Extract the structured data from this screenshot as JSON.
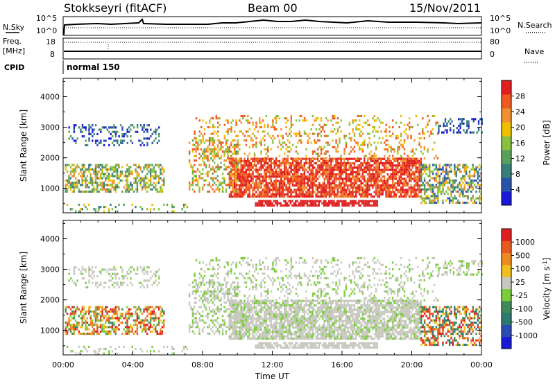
{
  "header": {
    "station": "Stokkseyri (fitACF)",
    "beam": "Beam 00",
    "date": "15/Nov/2011"
  },
  "top_panels": {
    "nsky_label": "N.Sky",
    "nsky_ticks": [
      "10^5",
      "10^0"
    ],
    "nsky_right_ticks": [
      "10^5",
      "10^0"
    ],
    "nsearch_label": "N.Search",
    "freq_label": "Freq.",
    "freq_unit": "[MHz]",
    "freq_ticks": [
      "18",
      "8"
    ],
    "nave_ticks": [
      "80",
      "0"
    ],
    "nave_label": "Nave",
    "cpid_label": "CPID",
    "cpid_value": "normal 150"
  },
  "colors": {
    "power": [
      "#1a1ad6",
      "#2a54a8",
      "#3a7e7a",
      "#5aa05a",
      "#88c040",
      "#f0c000",
      "#f09030",
      "#f05a20",
      "#e02020"
    ],
    "velocity": [
      "#1a1ad6",
      "#2a4cb0",
      "#2f7a6e",
      "#3f8a5a",
      "#7acc3c",
      "#c8c8c0",
      "#f0c020",
      "#f08a20",
      "#e85a20",
      "#e02020"
    ]
  },
  "chart_data": [
    {
      "type": "heatmap",
      "title": "Power",
      "xlabel": "",
      "ylabel": "Slant Range [km]",
      "x_ticks": [
        "00:00",
        "04:00",
        "08:00",
        "12:00",
        "16:00",
        "20:00",
        "00:00"
      ],
      "y_ticks": [
        "1000",
        "2000",
        "3000",
        "4000"
      ],
      "ylim": [
        200,
        4600
      ],
      "xlim_hours": [
        0,
        24
      ],
      "colorbar_label": "Power [dB]",
      "colorbar_ticks": [
        "28",
        "24",
        "20",
        "16",
        "12",
        "8",
        "4"
      ]
    },
    {
      "type": "heatmap",
      "title": "Velocity",
      "xlabel": "Time UT",
      "ylabel": "Slant Range [km]",
      "x_ticks": [
        "00:00",
        "04:00",
        "08:00",
        "12:00",
        "16:00",
        "20:00",
        "00:00"
      ],
      "y_ticks": [
        "1000",
        "2000",
        "3000",
        "4000"
      ],
      "ylim": [
        200,
        4600
      ],
      "xlim_hours": [
        0,
        24
      ],
      "colorbar_label": "Velocity [m s",
      "colorbar_label_sup": "-1",
      "colorbar_label_end": "]",
      "colorbar_ticks": [
        "1000",
        "500",
        "100",
        "25",
        "-25",
        "-100",
        "-500",
        "-1000"
      ]
    }
  ]
}
